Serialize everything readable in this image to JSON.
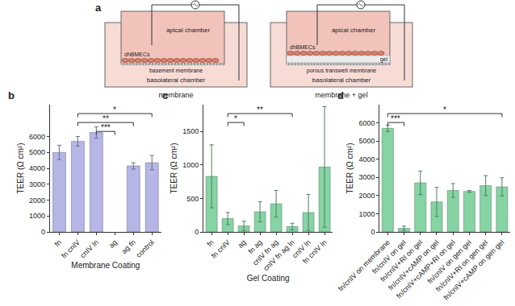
{
  "diagram": {
    "title": "a",
    "panels": [
      {
        "title": "membrane",
        "apical": "apical chamber",
        "cells": "dhBMECs",
        "layers": [
          "basement membrane"
        ],
        "basolateral": "basolateral chamber"
      },
      {
        "title": "membrane + gel",
        "apical": "apical chamber",
        "cells": "dhBMECs",
        "layers": [
          "gel",
          "porous transwell membrane"
        ],
        "basolateral": "basolateral chamber"
      }
    ]
  },
  "chart_data": [
    {
      "type": "bar",
      "title": "b",
      "x_label": "Membrane Coating",
      "y_label": "TEER (Ω cm²)",
      "categories": [
        "fn",
        "fn cnIV",
        "cnIV ln",
        "ag",
        "ag fn",
        "control"
      ],
      "values": [
        5000,
        5700,
        6250,
        null,
        4150,
        4350
      ],
      "errors": [
        450,
        300,
        350,
        null,
        200,
        450
      ],
      "color": "#b5b5e6",
      "ylim": [
        0,
        8000
      ],
      "yticks": [
        0,
        1000,
        2000,
        3000,
        4000,
        5000,
        6000
      ],
      "annotations": [
        {
          "text": "***",
          "from": "cnIV ln",
          "to": "ag"
        },
        {
          "text": "**",
          "from": "fn cnIV",
          "to": "ag fn"
        },
        {
          "text": "*",
          "from": "fn cnIV",
          "to": "control"
        }
      ]
    },
    {
      "type": "bar",
      "title": "c",
      "x_label": "Gel Coating",
      "y_label": "TEER (Ω cm²)",
      "categories": [
        "fn",
        "fn cnIV",
        "ag",
        "fn ag",
        "cnIV fn ag",
        "cnIV fn ag ln",
        "cnIV ln",
        "fn cnIV ln"
      ],
      "values": [
        830,
        200,
        90,
        300,
        420,
        80,
        290,
        970
      ],
      "errors": [
        470,
        90,
        70,
        150,
        200,
        50,
        270,
        900
      ],
      "color": "#86d3a3",
      "ylim": [
        0,
        1900
      ],
      "yticks": [
        0,
        500,
        1000,
        1500
      ],
      "annotations": [
        {
          "text": "*",
          "from": "fn cnIV",
          "to": "ag"
        },
        {
          "text": "**",
          "from": "fn cnIV",
          "to": "cnIV fn ag ln"
        }
      ]
    },
    {
      "type": "bar",
      "title": "d",
      "y_label": "TEER (Ω cm²)",
      "categories": [
        "fn/cnIV on membrane",
        "fn/cnIV on gel",
        "fn/cnIV+RI on gel",
        "fn/cnIV+cAMP on gel",
        "fn/cnIV+cAMP+RI on gel",
        "fn/cnIV on gen gel",
        "fn/cnIV+RI on gen gel",
        "fn/cnIV+cAMP on gen gel"
      ],
      "values": [
        5700,
        200,
        2700,
        1650,
        2280,
        2230,
        2550,
        2480
      ],
      "errors": [
        180,
        120,
        650,
        800,
        380,
        50,
        550,
        500
      ],
      "color": "#86d3a3",
      "ylim": [
        0,
        7000
      ],
      "yticks": [
        0,
        1000,
        2000,
        3000,
        4000,
        5000,
        6000
      ],
      "annotations": [
        {
          "text": "***",
          "from": "fn/cnIV on membrane",
          "to": "fn/cnIV on gel"
        },
        {
          "text": "*",
          "from": "fn/cnIV on membrane",
          "to": "fn/cnIV+cAMP on gen gel"
        }
      ]
    }
  ]
}
